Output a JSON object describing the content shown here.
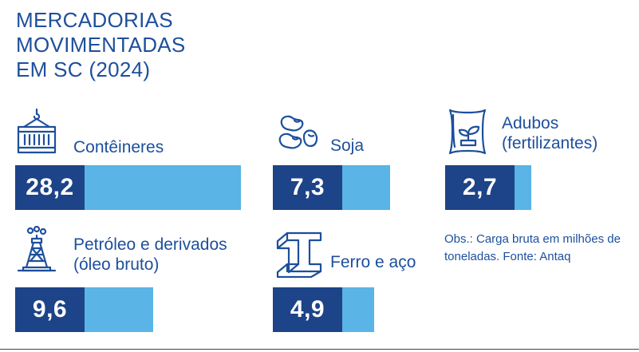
{
  "title": {
    "line1": "MERCADORIAS",
    "line2": "MOVIMENTADAS",
    "line3": "EM SC (2024)"
  },
  "colors": {
    "dark": "#1d4388",
    "light": "#5ab4e5",
    "text": "#1d4f9c"
  },
  "items": [
    {
      "label_line1": "Contêineres",
      "label_line2": "",
      "value_label": "28,2",
      "icon": "container-icon"
    },
    {
      "label_line1": "Soja",
      "label_line2": "",
      "value_label": "7,3",
      "icon": "soybean-icon"
    },
    {
      "label_line1": "Adubos",
      "label_line2": "(fertilizantes)",
      "value_label": "2,7",
      "icon": "fertilizer-bag-icon"
    },
    {
      "label_line1": "Petróleo e derivados",
      "label_line2": "(óleo bruto)",
      "value_label": "9,6",
      "icon": "oil-derrick-icon"
    },
    {
      "label_line1": "Ferro e aço",
      "label_line2": "",
      "value_label": "4,9",
      "icon": "steel-beam-icon"
    }
  ],
  "note": {
    "line1": "Obs.: Carga bruta em milhões de",
    "line2": "toneladas. Fonte: Antaq"
  },
  "chart_data": {
    "type": "bar",
    "title": "MERCADORIAS MOVIMENTADAS EM SC (2024)",
    "categories": [
      "Contêineres",
      "Soja",
      "Adubos (fertilizantes)",
      "Petróleo e derivados (óleo bruto)",
      "Ferro e aço"
    ],
    "values": [
      28.2,
      7.3,
      2.7,
      9.6,
      4.9
    ],
    "unit": "milhões de toneladas",
    "xlabel": "",
    "ylabel": ""
  }
}
